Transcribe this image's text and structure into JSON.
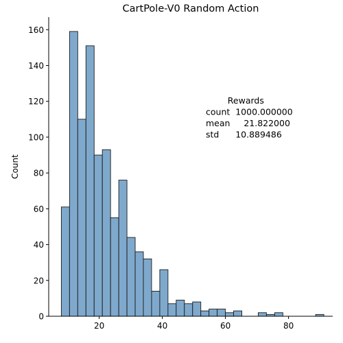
{
  "chart_data": {
    "type": "bar",
    "title": "CartPole-V0 Random Action",
    "xlabel": "",
    "ylabel": "Count",
    "xlim": [
      4,
      94
    ],
    "ylim": [
      0,
      167
    ],
    "grid": false,
    "xticks": [
      20,
      40,
      60,
      80
    ],
    "yticks": [
      0,
      20,
      40,
      60,
      80,
      100,
      120,
      140,
      160
    ],
    "bin_width": 2.6,
    "bins": [
      {
        "x0": 8.0,
        "count": 61
      },
      {
        "x0": 10.6,
        "count": 159
      },
      {
        "x0": 13.2,
        "count": 110
      },
      {
        "x0": 15.8,
        "count": 151
      },
      {
        "x0": 18.4,
        "count": 90
      },
      {
        "x0": 21.0,
        "count": 93
      },
      {
        "x0": 23.6,
        "count": 55
      },
      {
        "x0": 26.2,
        "count": 76
      },
      {
        "x0": 28.8,
        "count": 44
      },
      {
        "x0": 31.4,
        "count": 36
      },
      {
        "x0": 34.0,
        "count": 32
      },
      {
        "x0": 36.6,
        "count": 14
      },
      {
        "x0": 39.2,
        "count": 26
      },
      {
        "x0": 41.8,
        "count": 7
      },
      {
        "x0": 44.4,
        "count": 9
      },
      {
        "x0": 47.0,
        "count": 7
      },
      {
        "x0": 49.6,
        "count": 8
      },
      {
        "x0": 52.2,
        "count": 3
      },
      {
        "x0": 54.8,
        "count": 4
      },
      {
        "x0": 57.4,
        "count": 4
      },
      {
        "x0": 60.0,
        "count": 2
      },
      {
        "x0": 62.6,
        "count": 3
      },
      {
        "x0": 70.4,
        "count": 2
      },
      {
        "x0": 73.0,
        "count": 1
      },
      {
        "x0": 75.6,
        "count": 2
      },
      {
        "x0": 88.6,
        "count": 1
      }
    ],
    "annotation": {
      "lines": [
        "        Rewards",
        "count  1000.000000",
        "mean     21.822000",
        "std      10.889486"
      ]
    }
  }
}
